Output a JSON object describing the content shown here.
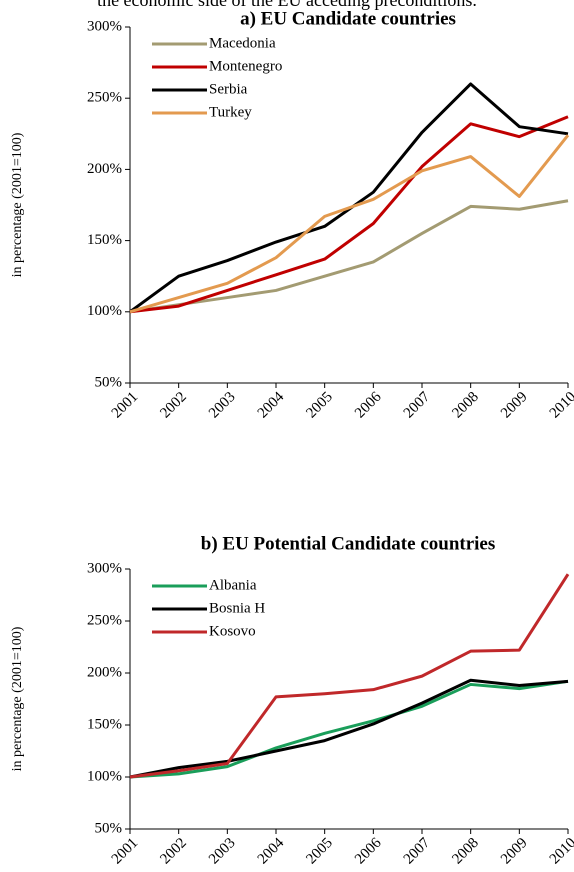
{
  "caption": "the economic side of the EU acceding preconditions.",
  "chart_data": [
    {
      "type": "line",
      "title": "a) EU Candidate countries",
      "y_label": "in percentage (2001=100)",
      "x": [
        "2001",
        "2002",
        "2003",
        "2004",
        "2005",
        "2006",
        "2007",
        "2008",
        "2009",
        "2010"
      ],
      "ylim": [
        50,
        300
      ],
      "yticks": [
        {
          "value": 50,
          "label": "50%"
        },
        {
          "value": 100,
          "label": "100%"
        },
        {
          "value": 150,
          "label": "150%"
        },
        {
          "value": 200,
          "label": "200%"
        },
        {
          "value": 250,
          "label": "250%"
        },
        {
          "value": 300,
          "label": "300%"
        }
      ],
      "legend": "upper left",
      "series": [
        {
          "name": "Macedonia",
          "color": "#a39b72",
          "values": [
            100,
            105,
            110,
            115,
            125,
            135,
            155,
            174,
            172,
            178
          ]
        },
        {
          "name": "Montenegro",
          "color": "#c00000",
          "values": [
            100,
            104,
            115,
            126,
            137,
            162,
            202,
            232,
            223,
            237
          ]
        },
        {
          "name": "Serbia",
          "color": "#000000",
          "values": [
            100,
            125,
            136,
            149,
            160,
            184,
            226,
            260,
            230,
            225
          ]
        },
        {
          "name": "Turkey",
          "color": "#e39a4f",
          "values": [
            100,
            110,
            120,
            138,
            167,
            179,
            199,
            209,
            181,
            224
          ]
        }
      ]
    },
    {
      "type": "line",
      "title": "b) EU Potential Candidate countries",
      "y_label": "in percentage (2001=100)",
      "x": [
        "2001",
        "2002",
        "2003",
        "2004",
        "2005",
        "2006",
        "2007",
        "2008",
        "2009",
        "2010"
      ],
      "ylim": [
        50,
        300
      ],
      "yticks": [
        {
          "value": 50,
          "label": "50%"
        },
        {
          "value": 100,
          "label": "100%"
        },
        {
          "value": 150,
          "label": "150%"
        },
        {
          "value": 200,
          "label": "200%"
        },
        {
          "value": 250,
          "label": "250%"
        },
        {
          "value": 300,
          "label": "300%"
        }
      ],
      "legend": "upper left",
      "series": [
        {
          "name": "Albania",
          "color": "#1a9e5a",
          "values": [
            100,
            103,
            110,
            128,
            142,
            154,
            168,
            189,
            185,
            192
          ]
        },
        {
          "name": "Bosnia H",
          "color": "#000000",
          "values": [
            100,
            109,
            115,
            125,
            135,
            151,
            171,
            193,
            188,
            192
          ]
        },
        {
          "name": "Kosovo",
          "color": "#c0282a",
          "values": [
            100,
            106,
            113,
            177,
            180,
            184,
            197,
            221,
            222,
            295
          ]
        }
      ]
    }
  ]
}
